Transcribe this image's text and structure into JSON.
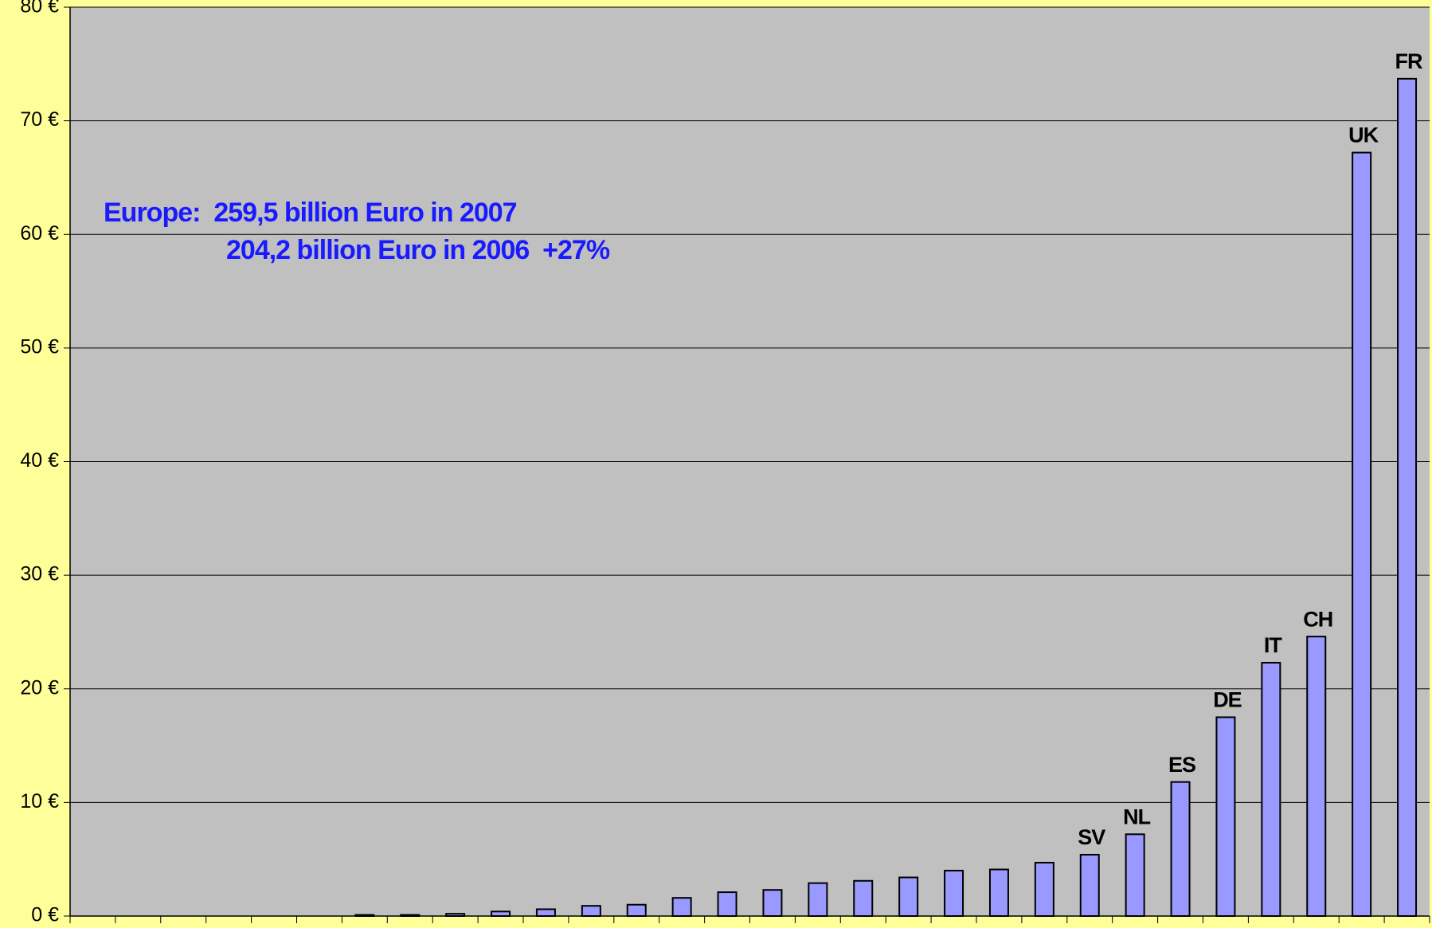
{
  "chart_data": {
    "type": "bar",
    "annotations": [
      "Europe:  259,5 billion Euro in 2007",
      "204,2 billion Euro in 2006  +27%"
    ],
    "categories": [
      null,
      null,
      null,
      null,
      null,
      null,
      null,
      null,
      null,
      null,
      null,
      null,
      null,
      null,
      null,
      null,
      null,
      null,
      null,
      null,
      null,
      null,
      "SV",
      "NL",
      "ES",
      "DE",
      "IT",
      "CH",
      "UK",
      "FR"
    ],
    "values": [
      0,
      0,
      0,
      0,
      0,
      0,
      0.1,
      0.1,
      0.2,
      0.4,
      0.6,
      0.9,
      1.0,
      1.6,
      2.1,
      2.3,
      2.9,
      3.1,
      3.4,
      4.0,
      4.1,
      4.7,
      5.4,
      7.2,
      11.8,
      17.5,
      22.3,
      24.6,
      67.2,
      73.7
    ],
    "color": "#9999ff",
    "ylim": [
      0,
      80
    ],
    "yticks": [
      {
        "value": 0,
        "label": "0 €"
      },
      {
        "value": 10,
        "label": "10 €"
      },
      {
        "value": 20,
        "label": "20 €"
      },
      {
        "value": 30,
        "label": "30 €"
      },
      {
        "value": 40,
        "label": "40 €"
      },
      {
        "value": 50,
        "label": "50 €"
      },
      {
        "value": 60,
        "label": "60 €"
      },
      {
        "value": 70,
        "label": "70 €"
      },
      {
        "value": 80,
        "label": "80 €"
      }
    ],
    "grid": true
  }
}
